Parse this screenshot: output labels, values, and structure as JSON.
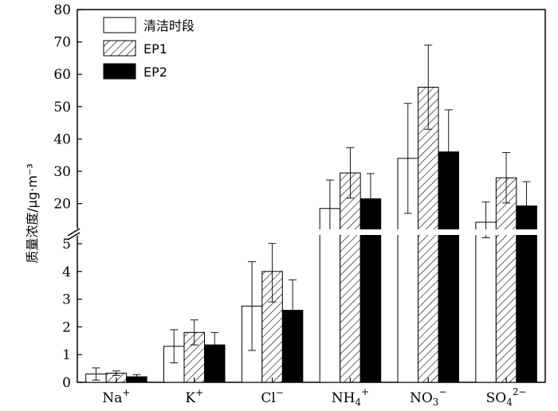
{
  "chart_data": {
    "type": "bar",
    "ylabel": "质量浓度/μg·m⁻³",
    "categories": [
      {
        "base": "Na",
        "sub": "",
        "sup": "+"
      },
      {
        "base": "K",
        "sub": "",
        "sup": "+"
      },
      {
        "base": "Cl",
        "sub": "",
        "sup": "−"
      },
      {
        "base": "NH",
        "sub": "4",
        "sup": "+"
      },
      {
        "base": "NO",
        "sub": "3",
        "sup": "−"
      },
      {
        "base": "SO",
        "sub": "4",
        "sup": "2−"
      }
    ],
    "series": [
      {
        "name": "清洁时段",
        "fill": "white",
        "values": [
          0.3,
          1.3,
          2.75,
          18.5,
          34,
          14
        ],
        "errors": [
          0.22,
          0.6,
          1.6,
          8.8,
          17,
          6.5
        ]
      },
      {
        "name": "EP1",
        "fill": "hatch",
        "values": [
          0.33,
          1.8,
          4.0,
          29.5,
          56,
          28
        ],
        "errors": [
          0.08,
          0.45,
          1.1,
          7.8,
          13,
          7.8
        ]
      },
      {
        "name": "EP2",
        "fill": "black",
        "values": [
          0.2,
          1.35,
          2.6,
          21.5,
          36,
          19.3
        ],
        "errors": [
          0.08,
          0.45,
          1.1,
          7.8,
          13,
          7.5
        ]
      }
    ],
    "y_lower": {
      "range": [
        0,
        5
      ],
      "ticks": [
        0,
        1,
        2,
        3,
        4,
        5
      ]
    },
    "y_upper": {
      "range": [
        15,
        80
      ],
      "ticks": [
        20,
        30,
        40,
        50,
        60,
        70,
        80
      ]
    },
    "axis_break": true,
    "legend_position": "top-left",
    "grid": false
  }
}
